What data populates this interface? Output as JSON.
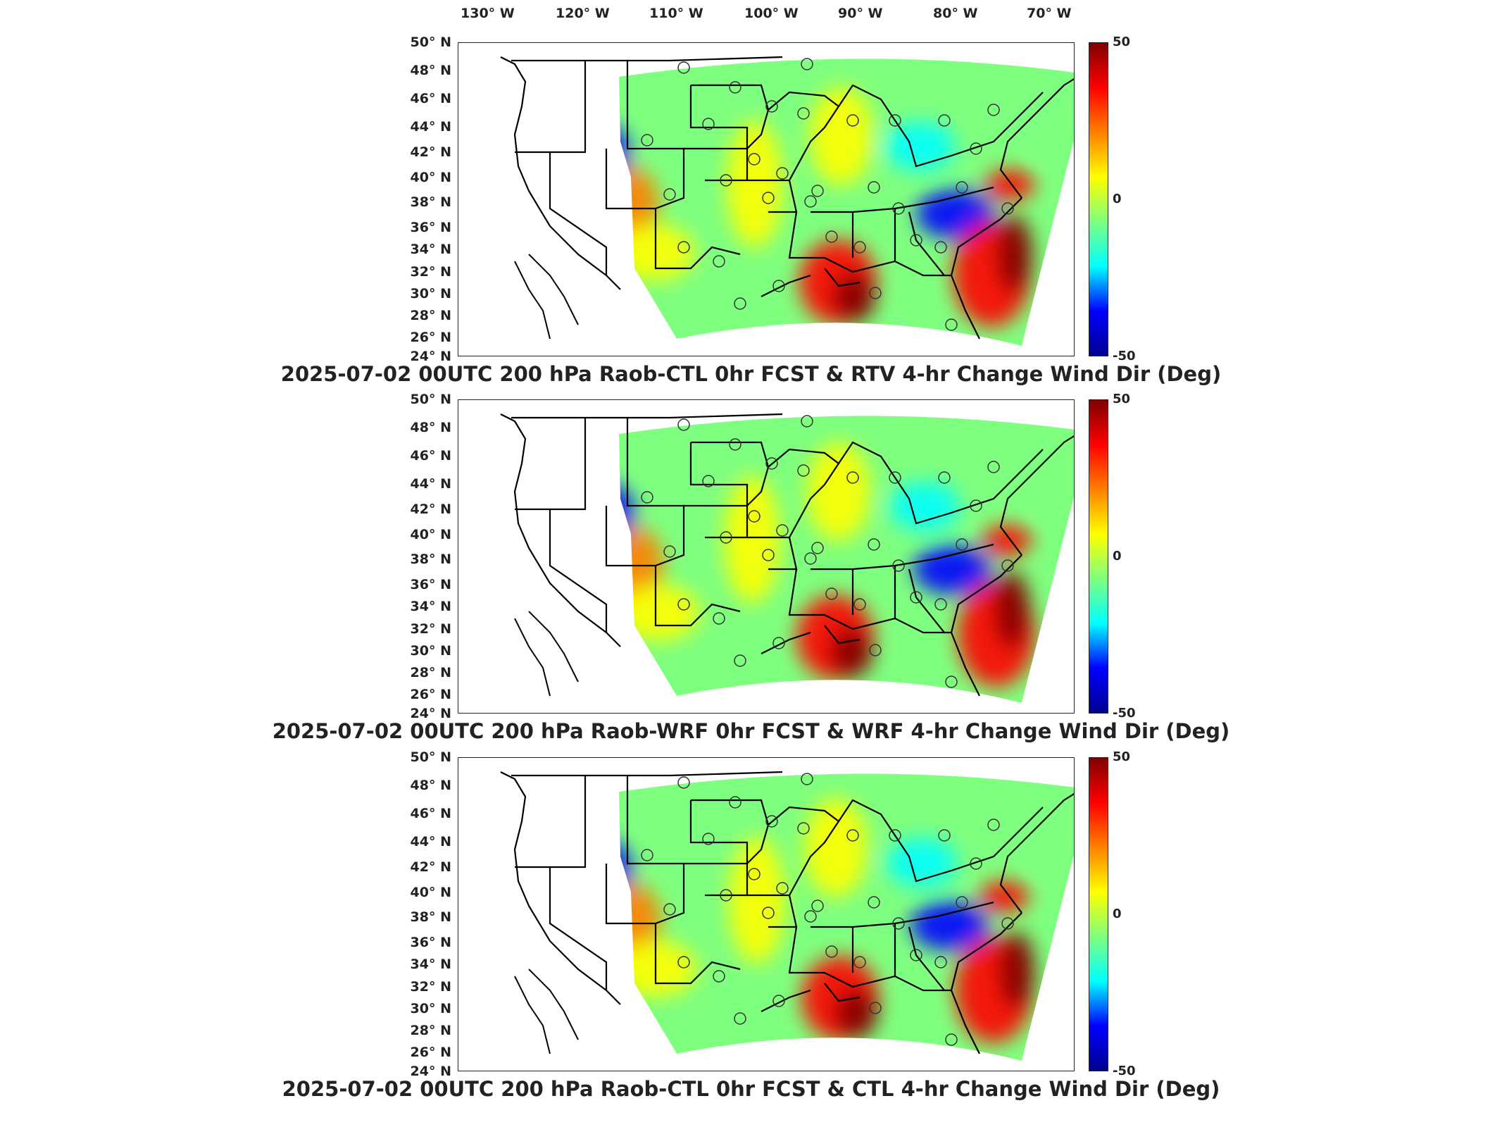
{
  "longitude_labels": [
    "130° W",
    "120° W",
    "110° W",
    "100° W",
    "90° W",
    "80° W",
    "70° W"
  ],
  "latitude_labels": [
    "50° N",
    "48° N",
    "46° N",
    "44° N",
    "42° N",
    "40° N",
    "38° N",
    "36° N",
    "34° N",
    "32° N",
    "30° N",
    "28° N",
    "26° N",
    "24° N"
  ],
  "colorbar": {
    "max_label": "50",
    "mid_label": "0",
    "min_label": "-50",
    "colormap": [
      "#00008f",
      "#0000ff",
      "#00ffff",
      "#7fff7f",
      "#ffff00",
      "#ff8000",
      "#ff0000",
      "#800000"
    ]
  },
  "panels": [
    {
      "title": "2025-07-02 00UTC 200 hPa Raob-CTL 0hr FCST & RTV 4-hr Change Wind Dir (Deg)"
    },
    {
      "title": "2025-07-02 00UTC 200 hPa Raob-WRF 0hr FCST & WRF 4-hr Change Wind Dir (Deg)"
    },
    {
      "title": "2025-07-02 00UTC 200 hPa Raob-CTL 0hr FCST & CTL 4-hr Change Wind Dir (Deg)"
    }
  ]
}
